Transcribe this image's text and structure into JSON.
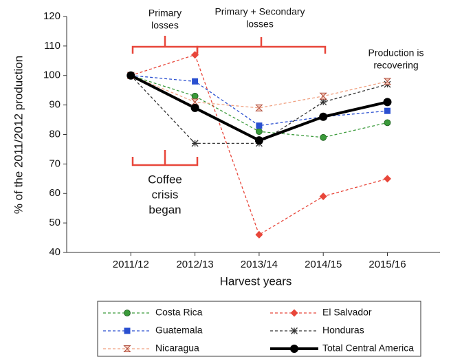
{
  "chart_data": {
    "type": "line",
    "x_label": "Harvest years",
    "y_label": "% of the 2011/2012 production",
    "categories": [
      "2011/12",
      "2012/13",
      "2013/14",
      "2014/15",
      "2015/16"
    ],
    "ylim": [
      40,
      120
    ],
    "yticks": [
      40,
      50,
      60,
      70,
      80,
      90,
      100,
      110,
      120
    ],
    "series": [
      {
        "name": "Costa Rica",
        "color": "#3a9a3a",
        "marker": "circle",
        "values": [
          100,
          93,
          81,
          79,
          84
        ]
      },
      {
        "name": "El Salvador",
        "color": "#e8463a",
        "marker": "diamond",
        "values": [
          100,
          107,
          46,
          59,
          65
        ]
      },
      {
        "name": "Guatemala",
        "color": "#2a4fd0",
        "marker": "square",
        "values": [
          100,
          98,
          83,
          86,
          88
        ]
      },
      {
        "name": "Honduras",
        "color": "#333333",
        "marker": "star",
        "values": [
          100,
          77,
          77,
          91,
          97
        ]
      },
      {
        "name": "Nicaragua",
        "color": "#f0a080",
        "marker": "hourglass",
        "values": [
          100,
          91,
          89,
          93,
          98
        ]
      },
      {
        "name": "Total Central America",
        "color": "#000000",
        "marker": "bold",
        "values": [
          100,
          89,
          78,
          86,
          91
        ]
      }
    ],
    "annotations": [
      {
        "lines": [
          "Primary",
          "losses"
        ]
      },
      {
        "lines": [
          "Primary + Secondary",
          "losses"
        ]
      },
      {
        "lines": [
          "Coffee",
          "crisis",
          "began"
        ]
      },
      {
        "lines": [
          "Production is",
          "recovering"
        ]
      }
    ]
  }
}
